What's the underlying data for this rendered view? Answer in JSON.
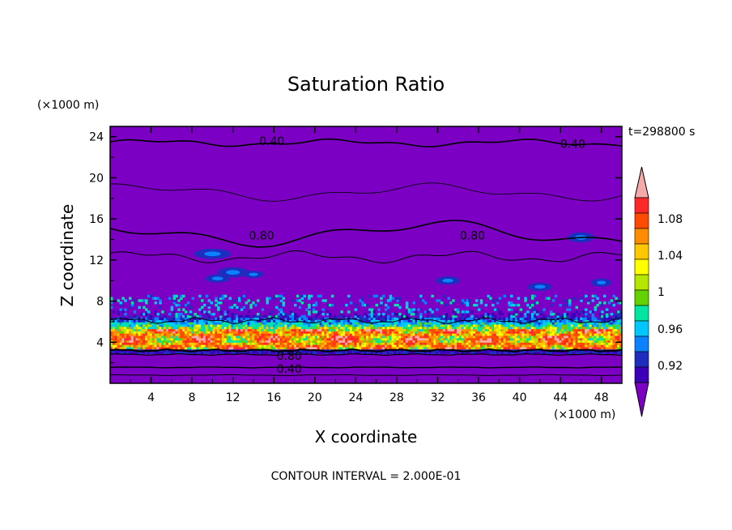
{
  "chart_data": {
    "type": "heatmap",
    "title": "Saturation Ratio",
    "xlabel": "X coordinate",
    "ylabel": "Z coordinate",
    "x_unit": "(×1000 m)",
    "y_unit": "(×1000 m)",
    "time_label": "t=298800 s",
    "footer": "CONTOUR INTERVAL = 2.000E-01",
    "xlim": [
      0,
      50
    ],
    "ylim": [
      0,
      25
    ],
    "x_ticks": [
      "4",
      "8",
      "12",
      "16",
      "20",
      "24",
      "28",
      "32",
      "36",
      "40",
      "44",
      "48"
    ],
    "y_ticks": [
      "4",
      "8",
      "12",
      "16",
      "20",
      "24"
    ],
    "colorbar": {
      "levels": [
        "0.92",
        "0.96",
        "1",
        "1.04",
        "1.08"
      ],
      "colors": [
        "#7b00c3",
        "#3c00b9",
        "#1e2dbe",
        "#0a82ff",
        "#00c8ff",
        "#00e6a0",
        "#64d200",
        "#b4e600",
        "#ffff00",
        "#ffc800",
        "#ff8c00",
        "#ff4b00",
        "#ff2828",
        "#f5aaaa"
      ],
      "under_color": "#7b00c3",
      "over_color": "#f5aaaa"
    },
    "contour_labels": [
      {
        "text": "0.40",
        "x": 15.8,
        "y": 23.6
      },
      {
        "text": "0.40",
        "x": 45.2,
        "y": 23.3
      },
      {
        "text": "0.80",
        "x": 14.8,
        "y": 14.4
      },
      {
        "text": "0.80",
        "x": 35.4,
        "y": 14.4
      },
      {
        "text": "0.80",
        "x": 17.5,
        "y": 2.7
      },
      {
        "text": "0.40",
        "x": 17.5,
        "y": 1.4
      }
    ]
  }
}
